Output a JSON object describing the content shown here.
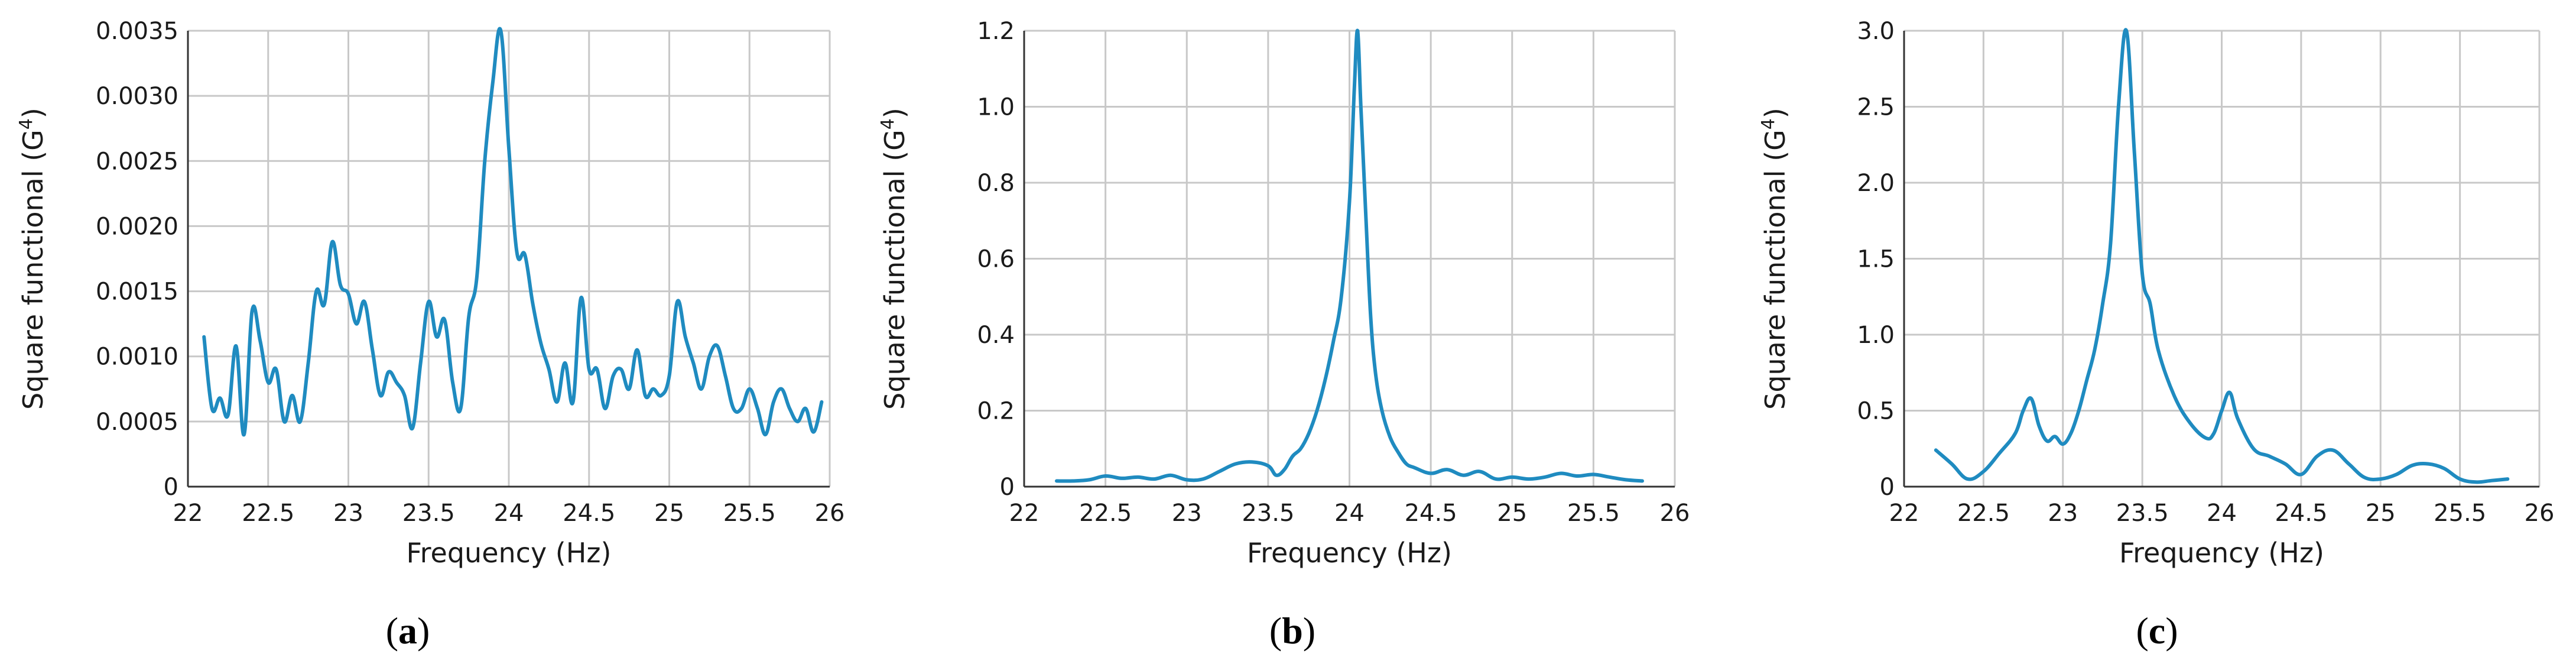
{
  "chart_data": [
    {
      "type": "line",
      "panel_label": "a",
      "xlabel": "Frequency (Hz)",
      "ylabel": "Square functional (G",
      "ylabel_sup": "4",
      "ylabel_close": ")",
      "xlim": [
        22,
        26
      ],
      "ylim": [
        0,
        0.0035
      ],
      "xticks": [
        22,
        22.5,
        23,
        23.5,
        24,
        24.5,
        25,
        25.5,
        26
      ],
      "xtick_labels": [
        "22",
        "22.5",
        "23",
        "23.5",
        "24",
        "24.5",
        "25",
        "25.5",
        "26"
      ],
      "yticks": [
        0,
        0.0005,
        0.001,
        0.0015,
        0.002,
        0.0025,
        0.003,
        0.0035
      ],
      "ytick_labels": [
        "0",
        "0.0005",
        "0.0010",
        "0.0015",
        "0.0020",
        "0.0025",
        "0.0030",
        "0.0035"
      ],
      "grid": true,
      "series": [
        {
          "color": "#1f8bc0",
          "x": [
            22.1,
            22.15,
            22.2,
            22.25,
            22.3,
            22.35,
            22.4,
            22.45,
            22.5,
            22.55,
            22.6,
            22.65,
            22.7,
            22.75,
            22.8,
            22.85,
            22.9,
            22.95,
            23.0,
            23.05,
            23.1,
            23.15,
            23.2,
            23.25,
            23.3,
            23.35,
            23.4,
            23.45,
            23.5,
            23.55,
            23.6,
            23.65,
            23.7,
            23.75,
            23.8,
            23.85,
            23.9,
            23.95,
            24.0,
            24.05,
            24.1,
            24.15,
            24.2,
            24.25,
            24.3,
            24.35,
            24.4,
            24.45,
            24.5,
            24.55,
            24.6,
            24.65,
            24.7,
            24.75,
            24.8,
            24.85,
            24.9,
            24.95,
            25.0,
            25.05,
            25.1,
            25.15,
            25.2,
            25.25,
            25.3,
            25.35,
            25.4,
            25.45,
            25.5,
            25.55,
            25.6,
            25.65,
            25.7,
            25.75,
            25.8,
            25.85,
            25.9,
            25.95
          ],
          "y": [
            0.00115,
            0.0006,
            0.00068,
            0.00055,
            0.00108,
            0.0004,
            0.00135,
            0.00112,
            0.0008,
            0.0009,
            0.0005,
            0.0007,
            0.0005,
            0.00095,
            0.0015,
            0.0014,
            0.00188,
            0.00155,
            0.00148,
            0.00125,
            0.00142,
            0.00105,
            0.0007,
            0.00088,
            0.0008,
            0.0007,
            0.00045,
            0.00095,
            0.00142,
            0.00115,
            0.00128,
            0.0008,
            0.0006,
            0.0013,
            0.0016,
            0.0025,
            0.0031,
            0.0035,
            0.0026,
            0.0018,
            0.00178,
            0.0014,
            0.0011,
            0.0009,
            0.00065,
            0.00095,
            0.00065,
            0.00145,
            0.0009,
            0.0009,
            0.0006,
            0.00085,
            0.0009,
            0.00075,
            0.00105,
            0.0007,
            0.00075,
            0.0007,
            0.00085,
            0.00142,
            0.00115,
            0.00095,
            0.00075,
            0.001,
            0.00108,
            0.00085,
            0.0006,
            0.0006,
            0.00075,
            0.0006,
            0.0004,
            0.00065,
            0.00075,
            0.0006,
            0.0005,
            0.0006,
            0.00042,
            0.00065
          ]
        }
      ]
    },
    {
      "type": "line",
      "panel_label": "b",
      "xlabel": "Frequency (Hz)",
      "ylabel": "Square functional (G",
      "ylabel_sup": "4",
      "ylabel_close": ")",
      "xlim": [
        22,
        26
      ],
      "ylim": [
        0,
        1.2
      ],
      "xticks": [
        22,
        22.5,
        23,
        23.5,
        24,
        24.5,
        25,
        25.5,
        26
      ],
      "xtick_labels": [
        "22",
        "22.5",
        "23",
        "23.5",
        "24",
        "24.5",
        "25",
        "25.5",
        "26"
      ],
      "yticks": [
        0,
        0.2,
        0.4,
        0.6,
        0.8,
        1.0,
        1.2
      ],
      "ytick_labels": [
        "0",
        "0.2",
        "0.4",
        "0.6",
        "0.8",
        "1.0",
        "1.2"
      ],
      "grid": true,
      "series": [
        {
          "color": "#1f8bc0",
          "x": [
            22.2,
            22.3,
            22.4,
            22.5,
            22.6,
            22.7,
            22.8,
            22.9,
            23.0,
            23.1,
            23.2,
            23.3,
            23.4,
            23.5,
            23.55,
            23.6,
            23.65,
            23.7,
            23.75,
            23.8,
            23.85,
            23.9,
            23.95,
            24.0,
            24.03,
            24.05,
            24.07,
            24.1,
            24.13,
            24.16,
            24.2,
            24.25,
            24.3,
            24.35,
            24.4,
            24.5,
            24.6,
            24.7,
            24.8,
            24.9,
            25.0,
            25.1,
            25.2,
            25.3,
            25.4,
            25.5,
            25.6,
            25.7,
            25.8
          ],
          "y": [
            0.015,
            0.015,
            0.018,
            0.028,
            0.022,
            0.025,
            0.02,
            0.03,
            0.018,
            0.02,
            0.04,
            0.06,
            0.065,
            0.055,
            0.03,
            0.045,
            0.08,
            0.1,
            0.14,
            0.2,
            0.28,
            0.38,
            0.5,
            0.75,
            1.05,
            1.2,
            1.0,
            0.72,
            0.45,
            0.3,
            0.2,
            0.13,
            0.09,
            0.06,
            0.05,
            0.035,
            0.045,
            0.03,
            0.04,
            0.02,
            0.025,
            0.02,
            0.025,
            0.035,
            0.028,
            0.032,
            0.025,
            0.018,
            0.015
          ]
        }
      ]
    },
    {
      "type": "line",
      "panel_label": "c",
      "xlabel": "Frequency (Hz)",
      "ylabel": "Square functional (G",
      "ylabel_sup": "4",
      "ylabel_close": ")",
      "xlim": [
        22,
        26
      ],
      "ylim": [
        0,
        3.0
      ],
      "xticks": [
        22,
        22.5,
        23,
        23.5,
        24,
        24.5,
        25,
        25.5,
        26
      ],
      "xtick_labels": [
        "22",
        "22.5",
        "23",
        "23.5",
        "24",
        "24.5",
        "25",
        "25.5",
        "26"
      ],
      "yticks": [
        0,
        0.5,
        1.0,
        1.5,
        2.0,
        2.5,
        3.0
      ],
      "ytick_labels": [
        "0",
        "0.5",
        "1.0",
        "1.5",
        "2.0",
        "2.5",
        "3.0"
      ],
      "grid": true,
      "series": [
        {
          "color": "#1f8bc0",
          "x": [
            22.2,
            22.3,
            22.4,
            22.5,
            22.6,
            22.7,
            22.75,
            22.8,
            22.85,
            22.9,
            22.95,
            23.0,
            23.05,
            23.1,
            23.15,
            23.2,
            23.25,
            23.3,
            23.35,
            23.4,
            23.45,
            23.5,
            23.55,
            23.6,
            23.7,
            23.8,
            23.9,
            23.95,
            24.0,
            24.05,
            24.1,
            24.2,
            24.3,
            24.4,
            24.5,
            24.6,
            24.7,
            24.8,
            24.9,
            25.0,
            25.1,
            25.2,
            25.3,
            25.4,
            25.5,
            25.6,
            25.7,
            25.8
          ],
          "y": [
            0.24,
            0.15,
            0.05,
            0.1,
            0.22,
            0.35,
            0.5,
            0.58,
            0.4,
            0.3,
            0.33,
            0.28,
            0.35,
            0.5,
            0.7,
            0.9,
            1.2,
            1.6,
            2.5,
            3.0,
            2.2,
            1.4,
            1.2,
            0.9,
            0.6,
            0.42,
            0.32,
            0.35,
            0.5,
            0.62,
            0.45,
            0.25,
            0.2,
            0.15,
            0.08,
            0.2,
            0.24,
            0.15,
            0.06,
            0.05,
            0.08,
            0.14,
            0.15,
            0.12,
            0.05,
            0.03,
            0.04,
            0.05
          ]
        }
      ]
    }
  ]
}
